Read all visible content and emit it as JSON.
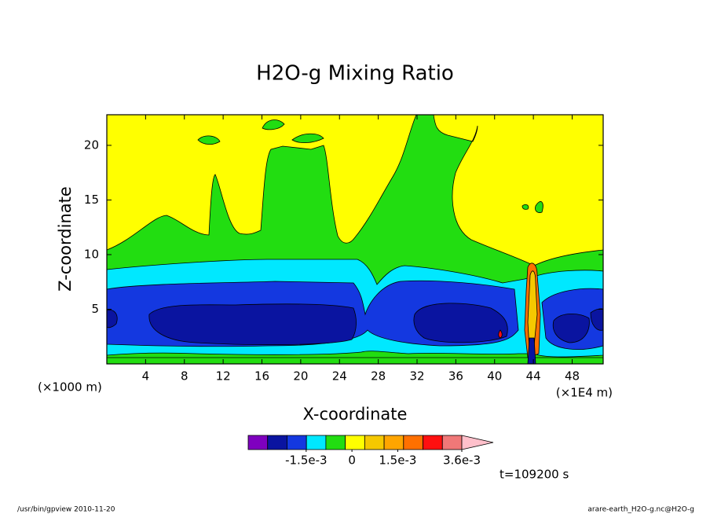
{
  "chart_data": {
    "type": "contour",
    "title": "H2O-g Mixing Ratio",
    "x_label": "X-coordinate",
    "y_label": "Z-coordinate",
    "x_unit": "(×1E4 m)",
    "y_unit": "(×1000 m)",
    "xlim": [
      0,
      51.2
    ],
    "ylim": [
      0,
      22.8
    ],
    "xticks": [
      4,
      8,
      12,
      16,
      20,
      24,
      28,
      32,
      36,
      40,
      44,
      48
    ],
    "yticks": [
      5,
      10,
      15,
      20
    ],
    "colorbar": {
      "colors": [
        "#7f00bf",
        "#0a14a0",
        "#1438e0",
        "#00e8ff",
        "#22dd11",
        "#ffff00",
        "#f5c800",
        "#ffa500",
        "#ff7000",
        "#ff1010",
        "#f07878",
        "#ffc0cb"
      ],
      "clim": [
        -0.0034,
        0.0036
      ],
      "ticks": [
        {
          "value": -0.0015,
          "label": "-1.5e-3"
        },
        0,
        {
          "value": 0.0015,
          "label": "1.5e-3"
        },
        {
          "value": 0.0036,
          "label": "3.6e-3"
        }
      ]
    },
    "time_label": "t=109200 s"
  },
  "footer": {
    "left": "/usr/bin/gpview  2010-11-20",
    "right": "arare-earth_H2O-g.nc@H2O-g"
  }
}
